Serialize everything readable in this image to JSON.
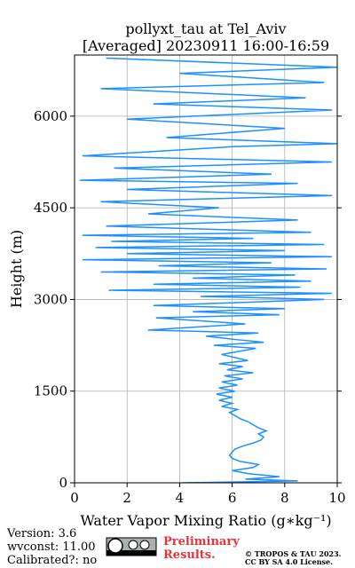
{
  "chart_data": {
    "type": "line",
    "title": "pollyxt_tau at Tel_Aviv",
    "subtitle": "[Averaged] 20230911 16:00-16:59",
    "x_label": "Water Vapor Mixing Ratio (g∗kg⁻¹)",
    "y_label": "Height (m)",
    "color": "#1e90ff",
    "grid": true,
    "xlim": [
      0,
      10
    ],
    "xticks": [
      0,
      2,
      4,
      6,
      8,
      10
    ],
    "ylim": [
      0,
      7000
    ],
    "yticks": [
      0,
      1500,
      3000,
      4500,
      6000
    ],
    "x": [
      4.1,
      8.5,
      6.5,
      7.8,
      6.6,
      6.0,
      6.8,
      7.0,
      6.3,
      6.0,
      5.9,
      6.0,
      6.1,
      6.4,
      6.8,
      7.1,
      7.2,
      7.0,
      7.3,
      7.0,
      6.8,
      6.6,
      6.3,
      6.1,
      5.9,
      6.2,
      5.6,
      6.0,
      5.5,
      6.0,
      5.4,
      6.1,
      5.5,
      6.2,
      5.6,
      6.4,
      5.7,
      6.8,
      5.8,
      6.4,
      5.5,
      6.6,
      5.6,
      6.9,
      5.3,
      7.2,
      6.0,
      5.0,
      7.0,
      2.8,
      6.5,
      4.8,
      3.1,
      7.8,
      4.5,
      8.0,
      3.0,
      6.3,
      9.5,
      4.8,
      9.8,
      1.3,
      8.6,
      3.0,
      9.0,
      4.5,
      8.4,
      1.0,
      9.6,
      3.2,
      7.5,
      0.3,
      9.8,
      2.0,
      8.0,
      0.8,
      9.5,
      1.4,
      6.8,
      0.3,
      9.0,
      1.2,
      8.5,
      2.8,
      5.5,
      1.0,
      9.8,
      2.0,
      8.5,
      0.2,
      7.5,
      1.5,
      9.8,
      0.3,
      6.0,
      10.0,
      3.5,
      8.0,
      2.0,
      9.8,
      3.0,
      8.8,
      1.0,
      9.5,
      4.0,
      10.0,
      1.2
    ],
    "values": [
      0,
      30,
      60,
      100,
      150,
      200,
      250,
      300,
      350,
      400,
      450,
      500,
      550,
      600,
      650,
      700,
      750,
      800,
      850,
      900,
      950,
      1000,
      1050,
      1100,
      1150,
      1200,
      1250,
      1300,
      1350,
      1400,
      1450,
      1500,
      1550,
      1600,
      1650,
      1700,
      1750,
      1800,
      1850,
      1900,
      1950,
      2000,
      2100,
      2200,
      2250,
      2300,
      2350,
      2400,
      2450,
      2500,
      2600,
      2650,
      2700,
      2750,
      2800,
      2850,
      2900,
      2950,
      3000,
      3050,
      3100,
      3150,
      3200,
      3250,
      3300,
      3350,
      3400,
      3450,
      3500,
      3550,
      3600,
      3650,
      3700,
      3750,
      3800,
      3850,
      3900,
      3950,
      4000,
      4050,
      4100,
      4200,
      4300,
      4400,
      4500,
      4600,
      4700,
      4800,
      4900,
      4950,
      5050,
      5150,
      5250,
      5350,
      5500,
      5550,
      5650,
      5800,
      5950,
      6100,
      6200,
      6300,
      6450,
      6550,
      6700,
      6800,
      6950
    ]
  },
  "footer": {
    "version": "Version: 3.6",
    "wvconst": "wvconst:  11.00",
    "calibrated": "Calibrated?: no",
    "preliminary": "Preliminary",
    "results": "Results.",
    "copyright": "© TROPOS & TAU 2023.",
    "license": "CC BY SA 4.0 License."
  }
}
